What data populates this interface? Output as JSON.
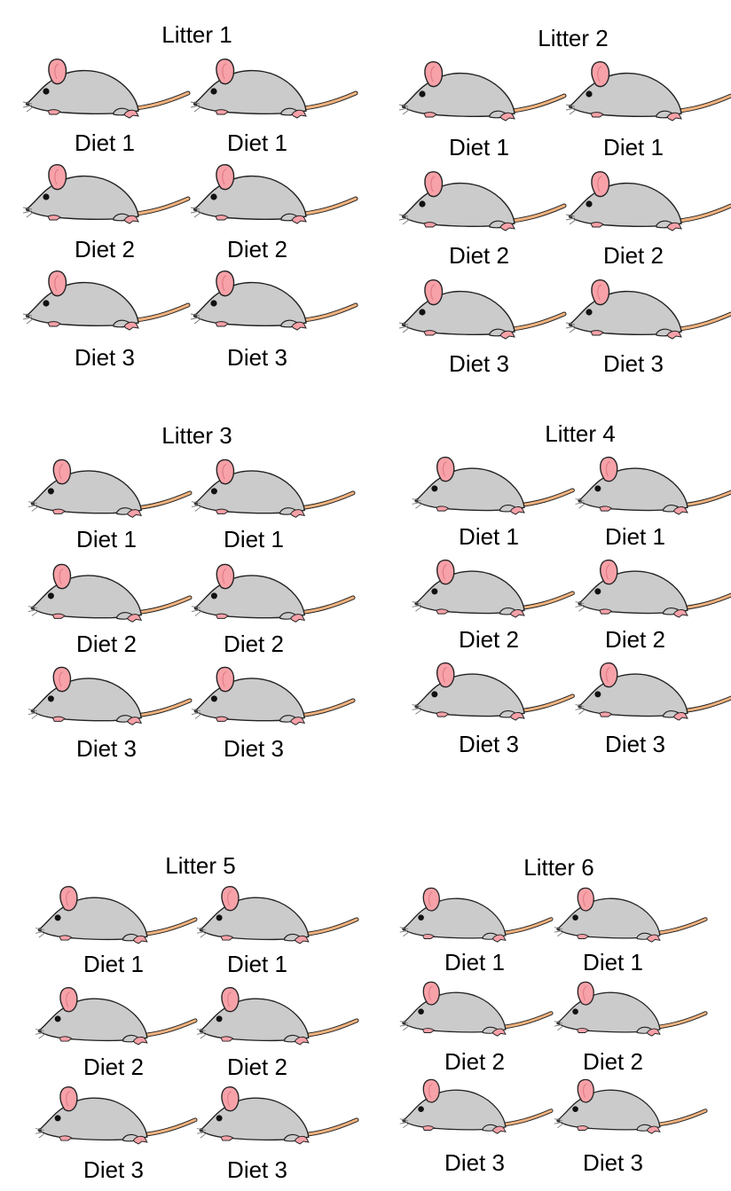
{
  "litters": [
    {
      "title": "Litter 1",
      "rows": [
        "Diet 1",
        "Diet 2",
        "Diet 3"
      ]
    },
    {
      "title": "Litter 2",
      "rows": [
        "Diet 1",
        "Diet 2",
        "Diet 3"
      ]
    },
    {
      "title": "Litter 3",
      "rows": [
        "Diet 1",
        "Diet 2",
        "Diet 3"
      ]
    },
    {
      "title": "Litter 4",
      "rows": [
        "Diet 1",
        "Diet 2",
        "Diet 3"
      ]
    },
    {
      "title": "Litter 5",
      "rows": [
        "Diet 1",
        "Diet 2",
        "Diet 3"
      ]
    },
    {
      "title": "Litter 6",
      "rows": [
        "Diet 1",
        "Diet 2",
        "Diet 3"
      ]
    }
  ],
  "colors": {
    "body": "#cbcbcb",
    "ear": "#f7a1a8",
    "tail": "#f2b27e",
    "outline": "#222222"
  }
}
